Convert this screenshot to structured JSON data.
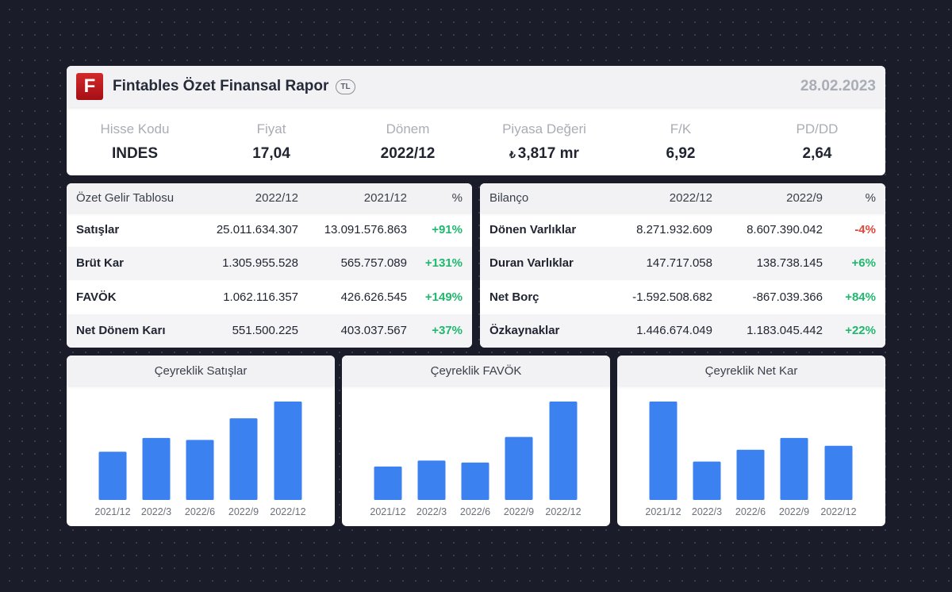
{
  "header": {
    "logo_letter": "F",
    "title": "Fintables Özet Finansal Rapor",
    "currency": "TL",
    "date": "28.02.2023"
  },
  "metrics": [
    {
      "label": "Hisse Kodu",
      "value": "INDES"
    },
    {
      "label": "Fiyat",
      "value": "17,04"
    },
    {
      "label": "Dönem",
      "value": "2022/12"
    },
    {
      "label": "Piyasa Değeri",
      "value": "3,817 mr",
      "prefix": "₺"
    },
    {
      "label": "F/K",
      "value": "6,92"
    },
    {
      "label": "PD/DD",
      "value": "2,64"
    }
  ],
  "income": {
    "title": "Özet Gelir Tablosu",
    "cols": [
      "2022/12",
      "2021/12",
      "%"
    ],
    "rows": [
      {
        "label": "Satışlar",
        "a": "25.011.634.307",
        "b": "13.091.576.863",
        "pct": "+91%",
        "dir": "pos"
      },
      {
        "label": "Brüt Kar",
        "a": "1.305.955.528",
        "b": "565.757.089",
        "pct": "+131%",
        "dir": "pos"
      },
      {
        "label": "FAVÖK",
        "a": "1.062.116.357",
        "b": "426.626.545",
        "pct": "+149%",
        "dir": "pos"
      },
      {
        "label": "Net Dönem Karı",
        "a": "551.500.225",
        "b": "403.037.567",
        "pct": "+37%",
        "dir": "pos"
      }
    ]
  },
  "balance": {
    "title": "Bilanço",
    "cols": [
      "2022/12",
      "2022/9",
      "%"
    ],
    "rows": [
      {
        "label": "Dönen Varlıklar",
        "a": "8.271.932.609",
        "b": "8.607.390.042",
        "pct": "-4%",
        "dir": "neg"
      },
      {
        "label": "Duran Varlıklar",
        "a": "147.717.058",
        "b": "138.738.145",
        "pct": "+6%",
        "dir": "pos"
      },
      {
        "label": "Net Borç",
        "a": "-1.592.508.682",
        "b": "-867.039.366",
        "pct": "+84%",
        "dir": "pos"
      },
      {
        "label": "Özkaynaklar",
        "a": "1.446.674.049",
        "b": "1.183.045.442",
        "pct": "+22%",
        "dir": "pos"
      }
    ]
  },
  "colors": {
    "bar": "#3b82f0",
    "positive": "#1fb86e",
    "negative": "#e0463a"
  },
  "chart_data": [
    {
      "type": "bar",
      "title": "Çeyreklik Satışlar",
      "categories": [
        "2021/12",
        "2022/3",
        "2022/6",
        "2022/9",
        "2022/12"
      ],
      "values": [
        49,
        63,
        61,
        83,
        100
      ]
    },
    {
      "type": "bar",
      "title": "Çeyreklik FAVÖK",
      "categories": [
        "2021/12",
        "2022/3",
        "2022/6",
        "2022/9",
        "2022/12"
      ],
      "values": [
        34,
        40,
        38,
        64,
        100
      ]
    },
    {
      "type": "bar",
      "title": "Çeyreklik Net Kar",
      "categories": [
        "2021/12",
        "2022/3",
        "2022/6",
        "2022/9",
        "2022/12"
      ],
      "values": [
        100,
        39,
        51,
        63,
        55
      ]
    }
  ]
}
